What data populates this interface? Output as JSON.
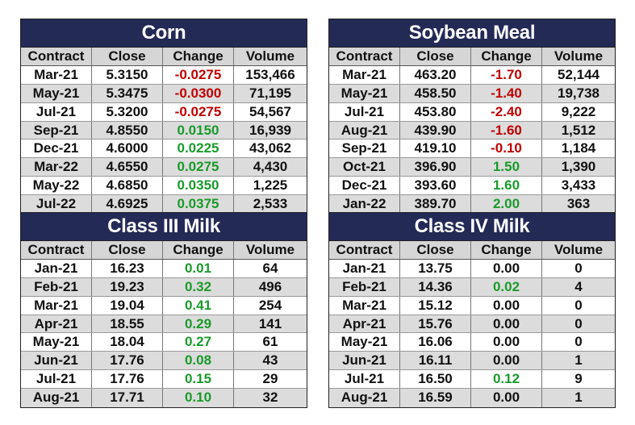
{
  "columns": [
    "Contract",
    "Close",
    "Change",
    "Volume"
  ],
  "tables": [
    {
      "id": "corn",
      "title": "Corn",
      "pos": "top left",
      "rows": [
        {
          "contract": "Mar-21",
          "close": "5.3150",
          "change": "-0.0275",
          "volume": "153,466",
          "dir": "neg"
        },
        {
          "contract": "May-21",
          "close": "5.3475",
          "change": "-0.0300",
          "volume": "71,195",
          "dir": "neg"
        },
        {
          "contract": "Jul-21",
          "close": "5.3200",
          "change": "-0.0275",
          "volume": "54,567",
          "dir": "neg"
        },
        {
          "contract": "Sep-21",
          "close": "4.8550",
          "change": "0.0150",
          "volume": "16,939",
          "dir": "pos"
        },
        {
          "contract": "Dec-21",
          "close": "4.6000",
          "change": "0.0225",
          "volume": "43,062",
          "dir": "pos"
        },
        {
          "contract": "Mar-22",
          "close": "4.6550",
          "change": "0.0275",
          "volume": "4,430",
          "dir": "pos"
        },
        {
          "contract": "May-22",
          "close": "4.6850",
          "change": "0.0350",
          "volume": "1,225",
          "dir": "pos"
        },
        {
          "contract": "Jul-22",
          "close": "4.6925",
          "change": "0.0375",
          "volume": "2,533",
          "dir": "pos"
        }
      ]
    },
    {
      "id": "soybean-meal",
      "title": "Soybean Meal",
      "pos": "top right",
      "rows": [
        {
          "contract": "Mar-21",
          "close": "463.20",
          "change": "-1.70",
          "volume": "52,144",
          "dir": "neg"
        },
        {
          "contract": "May-21",
          "close": "458.50",
          "change": "-1.40",
          "volume": "19,738",
          "dir": "neg"
        },
        {
          "contract": "Jul-21",
          "close": "453.80",
          "change": "-2.40",
          "volume": "9,222",
          "dir": "neg"
        },
        {
          "contract": "Aug-21",
          "close": "439.90",
          "change": "-1.60",
          "volume": "1,512",
          "dir": "neg"
        },
        {
          "contract": "Sep-21",
          "close": "419.10",
          "change": "-0.10",
          "volume": "1,184",
          "dir": "neg"
        },
        {
          "contract": "Oct-21",
          "close": "396.90",
          "change": "1.50",
          "volume": "1,390",
          "dir": "pos"
        },
        {
          "contract": "Dec-21",
          "close": "393.60",
          "change": "1.60",
          "volume": "3,433",
          "dir": "pos"
        },
        {
          "contract": "Jan-22",
          "close": "389.70",
          "change": "2.00",
          "volume": "363",
          "dir": "pos"
        }
      ]
    },
    {
      "id": "class-iii-milk",
      "title": "Class III Milk",
      "pos": "bottom left",
      "rows": [
        {
          "contract": "Jan-21",
          "close": "16.23",
          "change": "0.01",
          "volume": "64",
          "dir": "pos"
        },
        {
          "contract": "Feb-21",
          "close": "19.23",
          "change": "0.32",
          "volume": "496",
          "dir": "pos"
        },
        {
          "contract": "Mar-21",
          "close": "19.04",
          "change": "0.41",
          "volume": "254",
          "dir": "pos"
        },
        {
          "contract": "Apr-21",
          "close": "18.55",
          "change": "0.29",
          "volume": "141",
          "dir": "pos"
        },
        {
          "contract": "May-21",
          "close": "18.04",
          "change": "0.27",
          "volume": "61",
          "dir": "pos"
        },
        {
          "contract": "Jun-21",
          "close": "17.76",
          "change": "0.08",
          "volume": "43",
          "dir": "pos"
        },
        {
          "contract": "Jul-21",
          "close": "17.76",
          "change": "0.15",
          "volume": "29",
          "dir": "pos"
        },
        {
          "contract": "Aug-21",
          "close": "17.71",
          "change": "0.10",
          "volume": "32",
          "dir": "pos"
        }
      ]
    },
    {
      "id": "class-iv-milk",
      "title": "Class IV Milk",
      "pos": "bottom right",
      "rows": [
        {
          "contract": "Jan-21",
          "close": "13.75",
          "change": "0.00",
          "volume": "0",
          "dir": "zero"
        },
        {
          "contract": "Feb-21",
          "close": "14.36",
          "change": "0.02",
          "volume": "4",
          "dir": "pos"
        },
        {
          "contract": "Mar-21",
          "close": "15.12",
          "change": "0.00",
          "volume": "0",
          "dir": "zero"
        },
        {
          "contract": "Apr-21",
          "close": "15.76",
          "change": "0.00",
          "volume": "0",
          "dir": "zero"
        },
        {
          "contract": "May-21",
          "close": "16.06",
          "change": "0.00",
          "volume": "0",
          "dir": "zero"
        },
        {
          "contract": "Jun-21",
          "close": "16.11",
          "change": "0.00",
          "volume": "1",
          "dir": "zero"
        },
        {
          "contract": "Jul-21",
          "close": "16.50",
          "change": "0.12",
          "volume": "9",
          "dir": "pos"
        },
        {
          "contract": "Aug-21",
          "close": "16.59",
          "change": "0.00",
          "volume": "1",
          "dir": "zero"
        }
      ]
    }
  ]
}
